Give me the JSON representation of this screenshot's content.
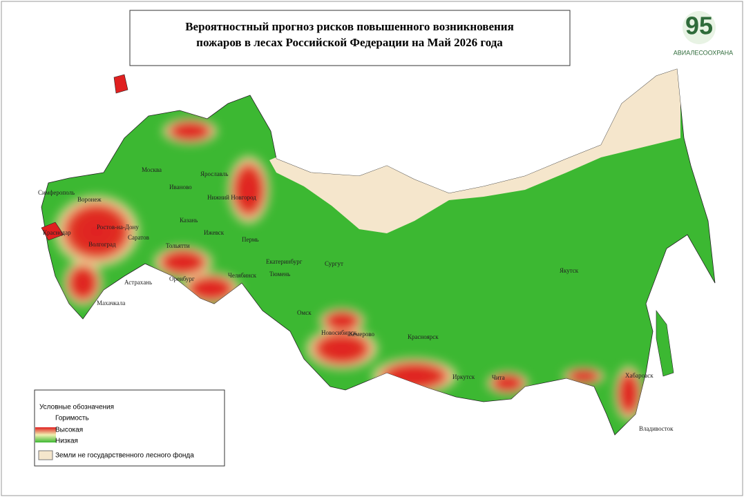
{
  "header": {
    "title_lines": [
      "Вероятностный прогноз рисков повышенного возникновения",
      "пожаров в лесах Российской Федерации на Май 2026 года"
    ]
  },
  "logo": {
    "number": "95",
    "name": "АВИАЛЕСООХРАНА"
  },
  "legend": {
    "title": "Условные обозначения",
    "subtitle": "Горимость",
    "items": [
      "Высокая",
      "Низкая",
      "Земли не государственного лесного фонда"
    ]
  },
  "cities": [
    "Москва",
    "Ярославль",
    "Иваново",
    "Нижний Новгород",
    "Воронеж",
    "Ростов-на-Дону",
    "Краснодар",
    "Волгоград",
    "Саратов",
    "Тольятти",
    "Казань",
    "Ижевск",
    "Пермь",
    "Екатеринбург",
    "Тюмень",
    "Сургут",
    "Оренбург",
    "Челябинск",
    "Астрахань",
    "Махачкала",
    "Омск",
    "Новосибирск",
    "Кемерово",
    "Красноярск",
    "Иркутск",
    "Чита",
    "Якутск",
    "Хабаровск",
    "Владивосток",
    "Симферополь"
  ]
}
